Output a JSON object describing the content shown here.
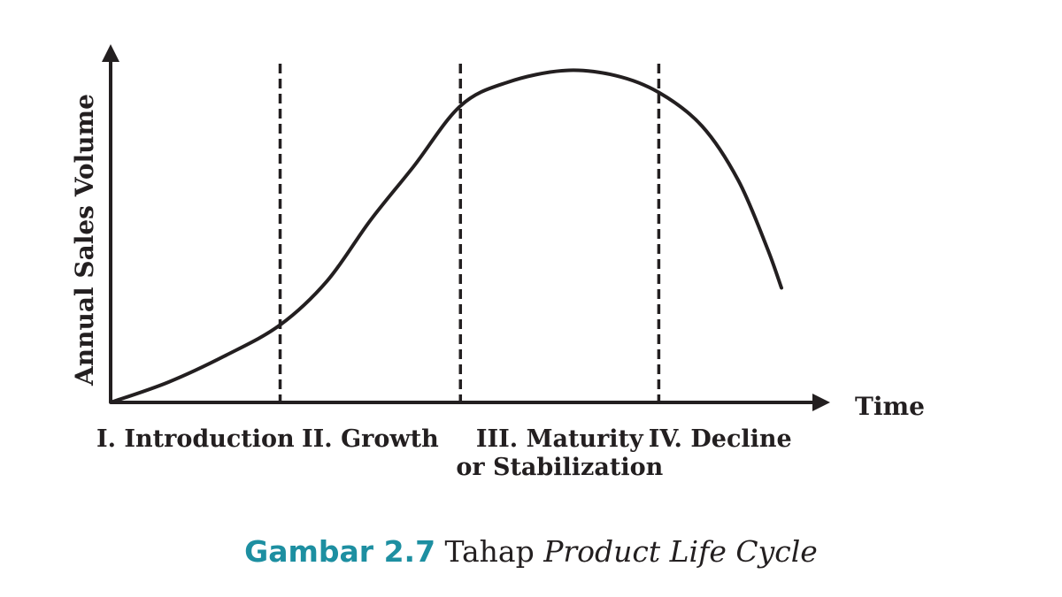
{
  "chart_data": {
    "type": "line",
    "title": "",
    "xlabel": "Time",
    "ylabel": "Annual Sales Volume",
    "xlim": [
      0,
      100
    ],
    "ylim": [
      0,
      100
    ],
    "grid": false,
    "stages": [
      {
        "label": "I. Introduction",
        "start": 0,
        "end": 23.5
      },
      {
        "label": "II. Growth",
        "start": 23.5,
        "end": 48.5
      },
      {
        "label": "III. Maturity",
        "label_line2": "or Stabilization",
        "start": 48.5,
        "end": 76
      },
      {
        "label": "IV. Decline",
        "start": 76,
        "end": 93
      }
    ],
    "dividers_x": [
      23.5,
      48.5,
      76
    ],
    "series": [
      {
        "values": [
          [
            0,
            0
          ],
          [
            8,
            6
          ],
          [
            16,
            14
          ],
          [
            23.5,
            23
          ],
          [
            30,
            36
          ],
          [
            36,
            54
          ],
          [
            42,
            70
          ],
          [
            48.5,
            88
          ],
          [
            55,
            95
          ],
          [
            63,
            98.5
          ],
          [
            70,
            97
          ],
          [
            76,
            92
          ],
          [
            82,
            82
          ],
          [
            87,
            66
          ],
          [
            91,
            46
          ],
          [
            93,
            34
          ]
        ]
      }
    ]
  },
  "caption": {
    "number": "Gambar 2.7",
    "text": " Tahap ",
    "emphasis": "Product Life Cycle"
  }
}
